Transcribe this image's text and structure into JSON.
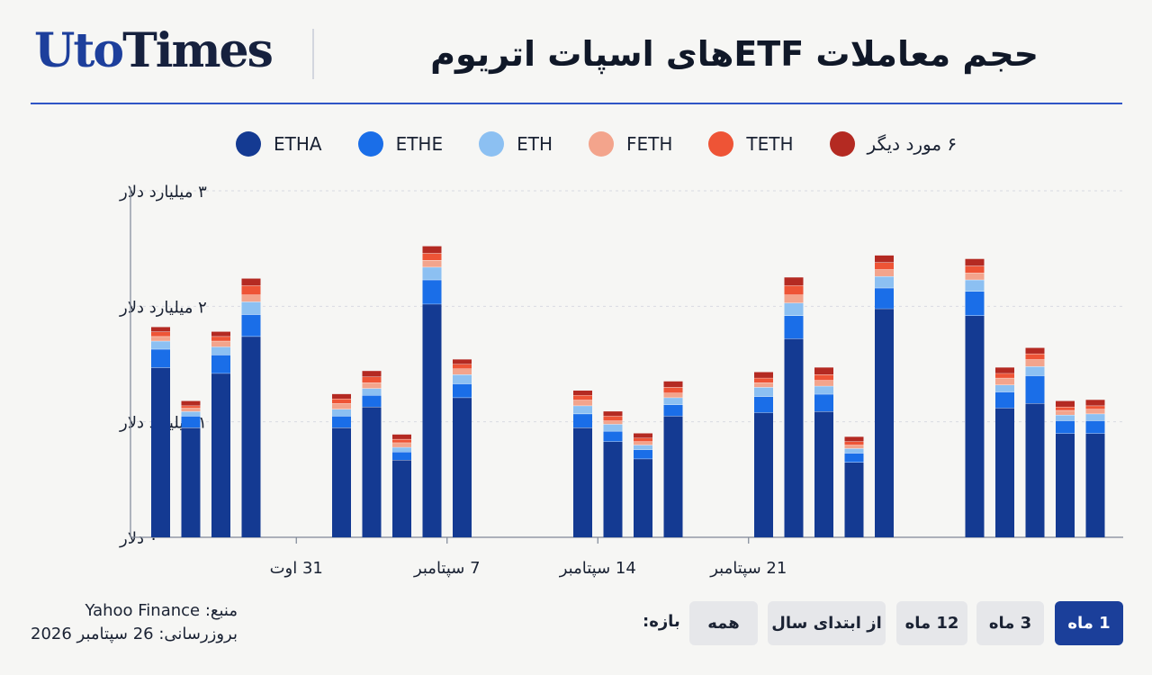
{
  "header": {
    "logo_part1": "Uto",
    "logo_part2": "Times",
    "title": "حجم معاملات ETFهای اسپات اتریوم"
  },
  "legend": [
    {
      "label": "ETHA",
      "color": "#143a92"
    },
    {
      "label": "ETHE",
      "color": "#1a6ee8"
    },
    {
      "label": "ETH",
      "color": "#8cc0f2"
    },
    {
      "label": "FETH",
      "color": "#f3a48c"
    },
    {
      "label": "TETH",
      "color": "#ee5436"
    },
    {
      "label": "۶ مورد دیگر",
      "color": "#b42a22"
    }
  ],
  "chart_data": {
    "type": "bar",
    "stacked": true,
    "title": "حجم معاملات ETFهای اسپات اتریوم",
    "y_tick_labels": [
      "۰ دلار",
      "۱ میلیارد دلار",
      "۲ میلیارد دلار",
      "۳ میلیارد دلار"
    ],
    "ylim": [
      0,
      3
    ],
    "grid": true,
    "x_tick_labels": [
      {
        "label": "31 اوت",
        "after_bar": 4
      },
      {
        "label": "7 سپتامبر",
        "after_bar": 9
      },
      {
        "label": "14 سپتامبر",
        "after_bar": 14
      },
      {
        "label": "21 سپتامبر",
        "after_bar": 19
      }
    ],
    "series_names": [
      "ETHA",
      "ETHE",
      "ETH",
      "FETH",
      "TETH",
      "۶ مورد دیگر"
    ],
    "bars": [
      {
        "slot": 0,
        "values": [
          1.47,
          0.16,
          0.07,
          0.04,
          0.04,
          0.04
        ]
      },
      {
        "slot": 1,
        "values": [
          0.95,
          0.1,
          0.04,
          0.03,
          0.02,
          0.04
        ]
      },
      {
        "slot": 2,
        "values": [
          1.42,
          0.16,
          0.07,
          0.05,
          0.04,
          0.04
        ]
      },
      {
        "slot": 3,
        "values": [
          1.74,
          0.19,
          0.11,
          0.06,
          0.08,
          0.06
        ]
      },
      {
        "slot": 6,
        "values": [
          0.95,
          0.1,
          0.06,
          0.05,
          0.04,
          0.04
        ]
      },
      {
        "slot": 7,
        "values": [
          1.13,
          0.1,
          0.06,
          0.05,
          0.05,
          0.05
        ]
      },
      {
        "slot": 8,
        "values": [
          0.67,
          0.07,
          0.04,
          0.04,
          0.03,
          0.04
        ]
      },
      {
        "slot": 9,
        "values": [
          2.02,
          0.21,
          0.11,
          0.06,
          0.06,
          0.06
        ]
      },
      {
        "slot": 10,
        "values": [
          1.21,
          0.12,
          0.08,
          0.05,
          0.04,
          0.04
        ]
      },
      {
        "slot": 14,
        "values": [
          0.95,
          0.12,
          0.07,
          0.05,
          0.04,
          0.04
        ]
      },
      {
        "slot": 15,
        "values": [
          0.83,
          0.09,
          0.06,
          0.03,
          0.04,
          0.04
        ]
      },
      {
        "slot": 16,
        "values": [
          0.68,
          0.08,
          0.04,
          0.03,
          0.03,
          0.04
        ]
      },
      {
        "slot": 17,
        "values": [
          1.05,
          0.1,
          0.06,
          0.04,
          0.05,
          0.05
        ]
      },
      {
        "slot": 20,
        "values": [
          1.08,
          0.14,
          0.08,
          0.04,
          0.04,
          0.05
        ]
      },
      {
        "slot": 21,
        "values": [
          1.72,
          0.2,
          0.11,
          0.07,
          0.08,
          0.07
        ]
      },
      {
        "slot": 22,
        "values": [
          1.09,
          0.15,
          0.07,
          0.05,
          0.05,
          0.06
        ]
      },
      {
        "slot": 23,
        "values": [
          0.65,
          0.08,
          0.04,
          0.03,
          0.03,
          0.04
        ]
      },
      {
        "slot": 24,
        "values": [
          1.98,
          0.18,
          0.1,
          0.06,
          0.06,
          0.06
        ]
      },
      {
        "slot": 27,
        "values": [
          1.92,
          0.21,
          0.1,
          0.06,
          0.06,
          0.06
        ]
      },
      {
        "slot": 28,
        "values": [
          1.12,
          0.14,
          0.06,
          0.06,
          0.04,
          0.05
        ]
      },
      {
        "slot": 29,
        "values": [
          1.16,
          0.24,
          0.08,
          0.06,
          0.05,
          0.05
        ]
      },
      {
        "slot": 30,
        "values": [
          0.9,
          0.11,
          0.05,
          0.04,
          0.03,
          0.05
        ]
      },
      {
        "slot": 31,
        "values": [
          0.9,
          0.11,
          0.06,
          0.04,
          0.03,
          0.05
        ]
      }
    ]
  },
  "footer": {
    "source": "منبع: Yahoo Finance",
    "updated": "بروزرسانی: 26 سپتامبر 2026"
  },
  "range": {
    "label": "بازه:",
    "buttons": [
      {
        "label": "همه",
        "active": false
      },
      {
        "label": "از ابتدای سال",
        "active": false
      },
      {
        "label": "12 ماه",
        "active": false
      },
      {
        "label": "3 ماه",
        "active": false
      },
      {
        "label": "1 ماه",
        "active": true
      }
    ]
  }
}
